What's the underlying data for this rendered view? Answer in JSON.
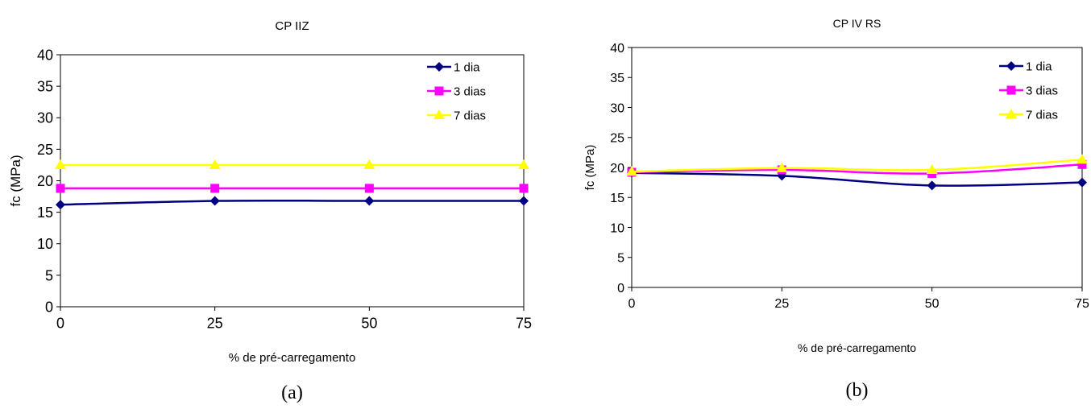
{
  "chart_data": [
    {
      "type": "line",
      "title": "CP IIZ",
      "xlabel": "% de pré-carregamento",
      "ylabel": "fc (MPa)",
      "panel_label": "(a)",
      "x": [
        0,
        25,
        50,
        75
      ],
      "xticks": [
        "0",
        "25",
        "50",
        "75"
      ],
      "ylim": [
        0,
        40
      ],
      "yticks": [
        "0",
        "5",
        "10",
        "15",
        "20",
        "25",
        "30",
        "35",
        "40"
      ],
      "grid": false,
      "legend": "top-right",
      "series": [
        {
          "name": "1 dia",
          "values": [
            16.2,
            16.8,
            16.8,
            16.8
          ],
          "color": "#000080",
          "marker": "diamond"
        },
        {
          "name": "3 dias",
          "values": [
            18.8,
            18.8,
            18.8,
            18.8
          ],
          "color": "#ff00ff",
          "marker": "square"
        },
        {
          "name": "7 dias",
          "values": [
            22.5,
            22.5,
            22.5,
            22.5
          ],
          "color": "#ffff00",
          "marker": "triangle"
        }
      ]
    },
    {
      "type": "line",
      "title": "CP IV RS",
      "xlabel": "% de pré-carregamento",
      "ylabel": "fc (MPa)",
      "panel_label": "(b)",
      "x": [
        0,
        25,
        50,
        75
      ],
      "xticks": [
        "0",
        "25",
        "50",
        "75"
      ],
      "ylim": [
        0,
        40
      ],
      "yticks": [
        "0",
        "5",
        "10",
        "15",
        "20",
        "25",
        "30",
        "35",
        "40"
      ],
      "grid": false,
      "legend": "top-right",
      "series": [
        {
          "name": "1 dia",
          "values": [
            19.1,
            18.6,
            17.0,
            17.5
          ],
          "color": "#000080",
          "marker": "diamond"
        },
        {
          "name": "3 dias",
          "values": [
            19.2,
            19.6,
            19.0,
            20.5
          ],
          "color": "#ff00ff",
          "marker": "square"
        },
        {
          "name": "7 dias",
          "values": [
            19.3,
            19.9,
            19.6,
            21.3
          ],
          "color": "#ffff00",
          "marker": "triangle"
        }
      ]
    }
  ]
}
